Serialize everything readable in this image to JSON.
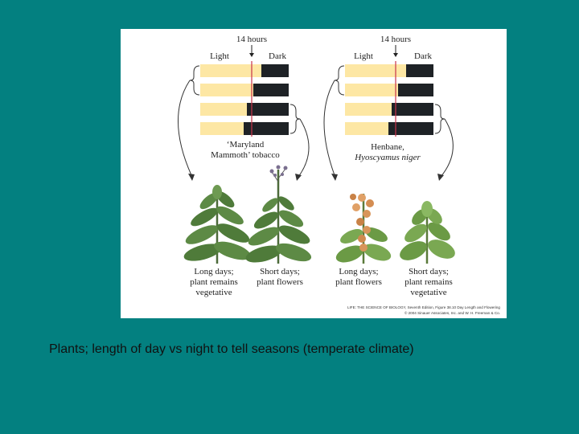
{
  "slide": {
    "background_color": "#038080",
    "caption": "Plants; length of day vs night to tell seasons (temperate climate)"
  },
  "figure": {
    "light_color": "#fde7a4",
    "dark_color": "#1e2226",
    "marker_color": "#c8334a",
    "left_panel": {
      "hours_label": "14 hours",
      "light_label": "Light",
      "dark_label": "Dark",
      "plant_label_line1": "‘Maryland",
      "plant_label_line2": "Mammoth’ tobacco",
      "long_days_caption": [
        "Long days;",
        "plant remains",
        "vegetative"
      ],
      "short_days_caption": [
        "Short days;",
        "plant flowers"
      ]
    },
    "right_panel": {
      "hours_label": "14 hours",
      "light_label": "Light",
      "dark_label": "Dark",
      "plant_label_line1": "Henbane,",
      "plant_label_line2": "Hyoscyamus niger",
      "long_days_caption": [
        "Long days;",
        "plant flowers"
      ],
      "short_days_caption": [
        "Short days;",
        "plant remains",
        "vegetative"
      ]
    },
    "credit_line1": "LIFE: THE SCIENCE OF BIOLOGY, Seventh Edition, Figure 38.10 Day Length and Flowering",
    "credit_line2": "© 2004 Sinauer Associates, Inc. and W. H. Freeman & Co."
  }
}
